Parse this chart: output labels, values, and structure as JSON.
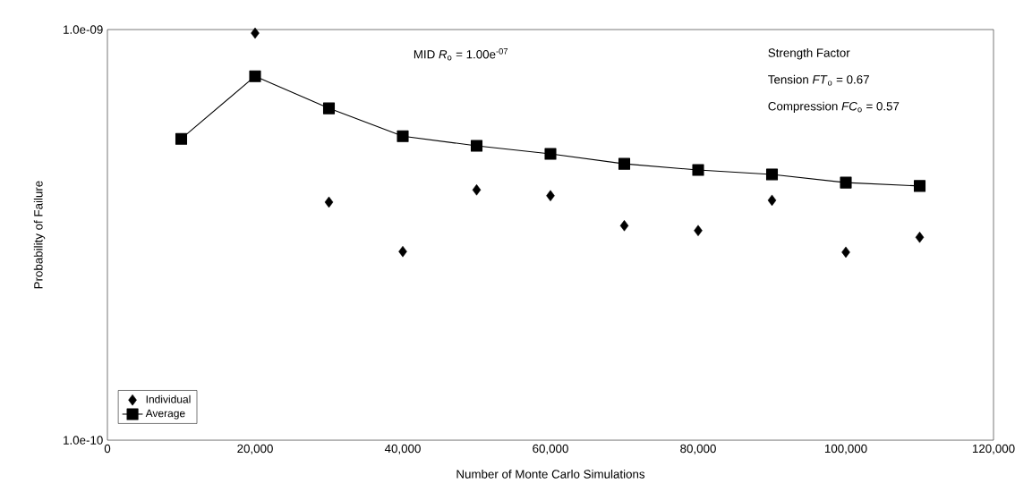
{
  "chart_data": {
    "type": "line",
    "xlabel": "Number of Monte Carlo Simulations",
    "ylabel": "Probability of Failure",
    "x": [
      10000,
      20000,
      30000,
      40000,
      50000,
      60000,
      70000,
      80000,
      90000,
      100000,
      110000
    ],
    "series": [
      {
        "name": "Individual",
        "type": "scatter",
        "marker": "diamond",
        "color": "#000000",
        "values": [
          null,
          9.8e-10,
          3.8e-10,
          2.88e-10,
          4.07e-10,
          3.94e-10,
          3.33e-10,
          3.24e-10,
          3.84e-10,
          2.87e-10,
          3.12e-10
        ]
      },
      {
        "name": "Average",
        "type": "line",
        "marker": "square",
        "line_style": "solid",
        "color": "#000000",
        "values": [
          5.42e-10,
          7.7e-10,
          6.43e-10,
          5.5e-10,
          5.21e-10,
          4.98e-10,
          4.71e-10,
          4.55e-10,
          4.44e-10,
          4.24e-10,
          4.16e-10
        ]
      }
    ],
    "log": "y",
    "xlim": [
      0,
      120000
    ],
    "ylim": [
      1e-10,
      1e-09
    ],
    "xticks": [
      0,
      {
        "value": 20000,
        "label": "20,000"
      },
      {
        "value": 40000,
        "label": "40,000"
      },
      {
        "value": 60000,
        "label": "60,000"
      },
      {
        "value": 80000,
        "label": "80,000"
      },
      {
        "value": 100000,
        "label": "100,000"
      },
      {
        "value": 120000,
        "label": "120,000"
      }
    ],
    "yticks": [
      {
        "value": 1e-10,
        "label": "1.0e-10"
      },
      {
        "value": 1e-09,
        "label": "1.0e-09"
      }
    ],
    "annotations": [
      "MID *R*$_{o}$ = 1.00e$^{-07}$",
      "Strength Factor",
      "Tension *FT*$_{o}$ = 0.67",
      "Compression *FC*$_{o}$ = 0.57"
    ],
    "grid": false,
    "legend": "bottom left"
  }
}
